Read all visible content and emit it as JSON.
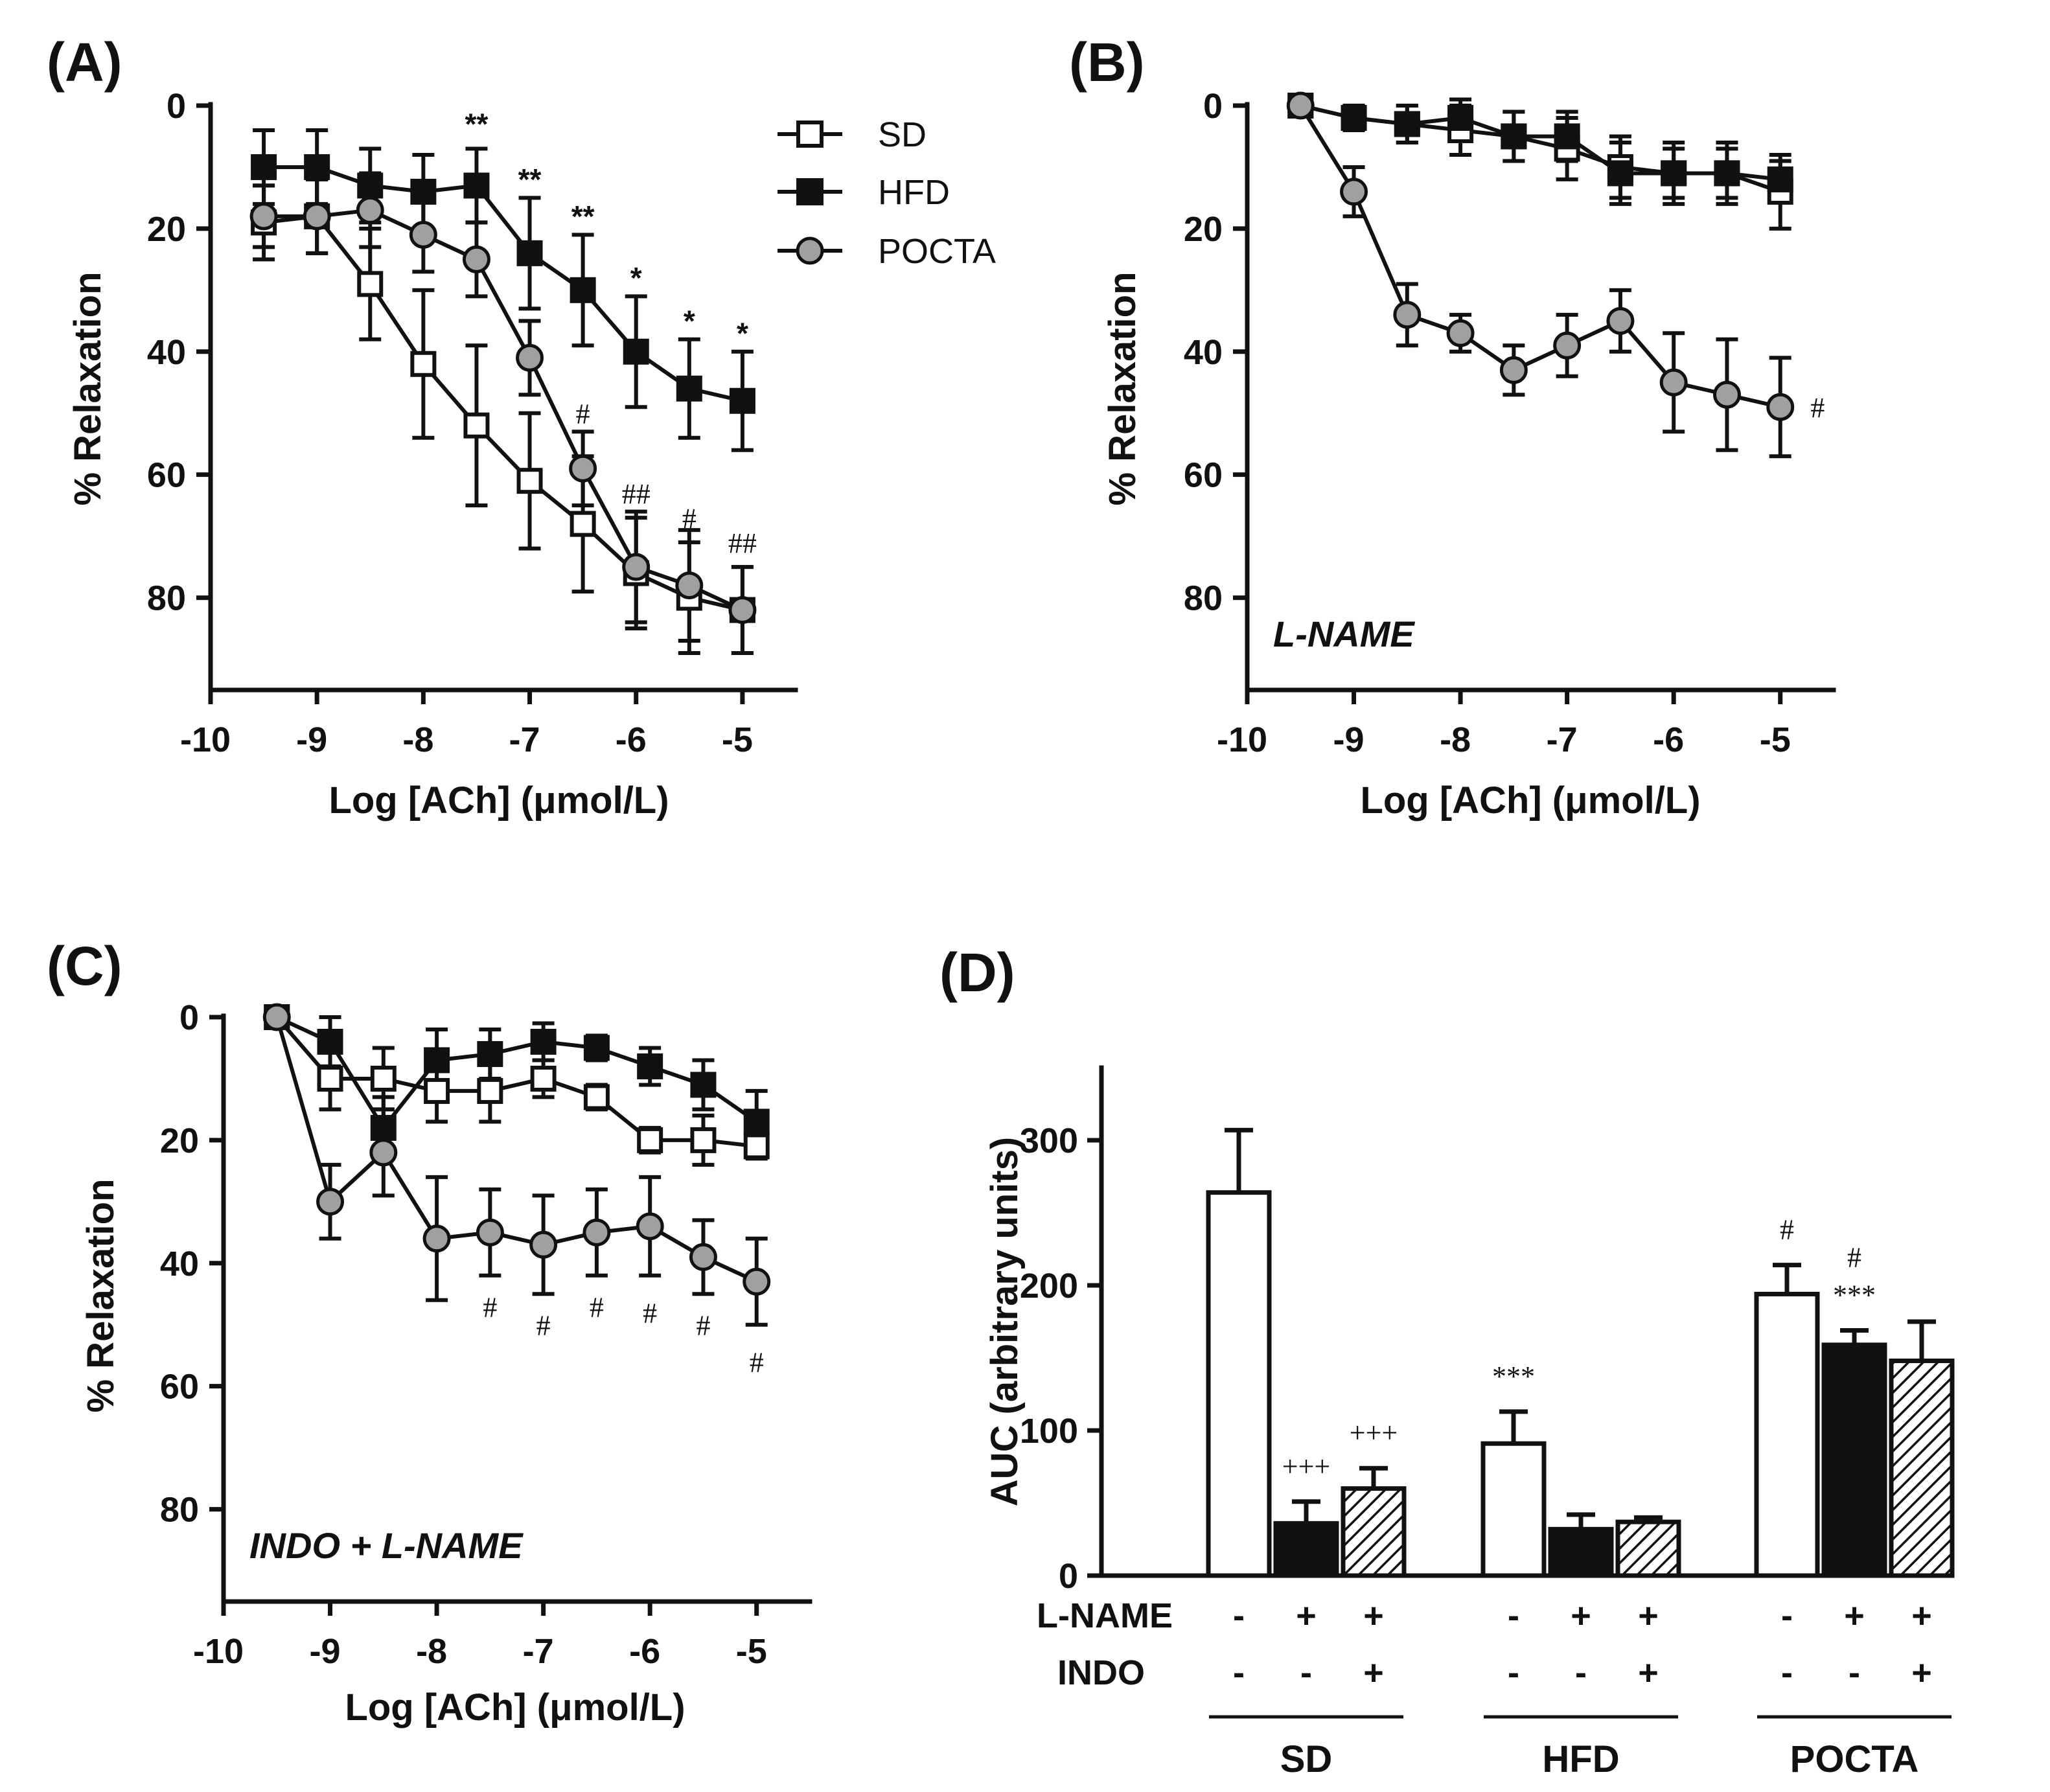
{
  "colors": {
    "SD": "#ffffff",
    "HFD": "#111111",
    "POCTA": "#a0a0a0",
    "axis": "#111111"
  },
  "chart_data": [
    {
      "panel": "(A)",
      "type": "line",
      "xlabel": "Log [ACh] (μmol/L)",
      "ylabel": "% Relaxation",
      "xlim": [
        -10,
        -4.5
      ],
      "ylim": [
        0,
        95
      ],
      "y_inverted": true,
      "xticks": [
        -10,
        -9,
        -8,
        -7,
        -6,
        -5
      ],
      "yticks": [
        0,
        20,
        40,
        60,
        80
      ],
      "x": [
        -9.5,
        -9,
        -8.5,
        -8,
        -7.5,
        -7,
        -6.5,
        -6,
        -5.5,
        -5
      ],
      "series": [
        {
          "name": "SD",
          "marker": "square-open",
          "values": [
            19,
            18,
            29,
            42,
            52,
            61,
            68,
            76,
            80,
            82
          ],
          "errors": [
            6,
            6,
            9,
            12,
            13,
            11,
            11,
            9,
            9,
            7
          ]
        },
        {
          "name": "HFD",
          "marker": "square-filled",
          "values": [
            10,
            10,
            13,
            14,
            13,
            24,
            30,
            40,
            46,
            48
          ],
          "errors": [
            6,
            6,
            6,
            6,
            6,
            9,
            9,
            9,
            8,
            8
          ]
        },
        {
          "name": "POCTA",
          "marker": "circle-gray",
          "values": [
            18,
            18,
            17,
            21,
            25,
            41,
            59,
            75,
            78,
            82
          ],
          "errors": [
            5,
            6,
            6,
            6,
            6,
            6,
            6,
            9,
            9,
            7
          ]
        }
      ],
      "legend": [
        "SD",
        "HFD",
        "POCTA"
      ],
      "annotations": [
        {
          "text": "**",
          "x": -7.5,
          "y": 3
        },
        {
          "text": "**",
          "x": -7,
          "y": 12
        },
        {
          "text": "**",
          "x": -6.5,
          "y": 18
        },
        {
          "text": "*",
          "x": -6,
          "y": 28
        },
        {
          "text": "*",
          "x": -5.5,
          "y": 35
        },
        {
          "text": "*",
          "x": -5,
          "y": 37
        },
        {
          "text": "#",
          "x": -6.5,
          "y": 50
        },
        {
          "text": "##",
          "x": -6,
          "y": 63
        },
        {
          "text": "#",
          "x": -5.5,
          "y": 67
        },
        {
          "text": "##",
          "x": -5,
          "y": 71
        }
      ]
    },
    {
      "panel": "(B)",
      "type": "line",
      "xlabel": "Log [ACh] (μmol/L)",
      "ylabel": "% Relaxation",
      "xlim": [
        -10,
        -4.5
      ],
      "ylim": [
        0,
        95
      ],
      "y_inverted": true,
      "xticks": [
        -10,
        -9,
        -8,
        -7,
        -6,
        -5
      ],
      "yticks": [
        0,
        20,
        40,
        60,
        80
      ],
      "note": "L-NAME",
      "x": [
        -9.5,
        -9,
        -8.5,
        -8,
        -7.5,
        -7,
        -6.5,
        -6,
        -5.5,
        -5
      ],
      "series": [
        {
          "name": "SD",
          "marker": "square-open",
          "values": [
            0,
            2,
            3,
            4,
            5,
            7,
            10,
            11,
            11,
            14
          ],
          "errors": [
            0,
            2,
            3,
            4,
            4,
            5,
            5,
            5,
            5,
            6
          ]
        },
        {
          "name": "HFD",
          "marker": "square-filled",
          "values": [
            0,
            2,
            3,
            2,
            5,
            5,
            11,
            11,
            11,
            12
          ],
          "errors": [
            0,
            2,
            3,
            3,
            4,
            4,
            5,
            4,
            4,
            3
          ]
        },
        {
          "name": "POCTA",
          "marker": "circle-gray",
          "values": [
            0,
            14,
            34,
            37,
            43,
            39,
            35,
            45,
            47,
            49
          ],
          "errors": [
            0,
            4,
            5,
            3,
            4,
            5,
            5,
            8,
            9,
            8
          ]
        }
      ],
      "annotations": [
        {
          "text": "#",
          "x": -4.65,
          "y": 49
        }
      ]
    },
    {
      "panel": "(C)",
      "type": "line",
      "xlabel": "Log [ACh] (μmol/L)",
      "ylabel": "% Relaxation",
      "xlim": [
        -10,
        -4.5
      ],
      "ylim": [
        0,
        95
      ],
      "y_inverted": true,
      "xticks": [
        -10,
        -9,
        -8,
        -7,
        -6,
        -5
      ],
      "yticks": [
        0,
        20,
        40,
        60,
        80
      ],
      "note": "INDO + L-NAME",
      "x": [
        -9.5,
        -9,
        -8.5,
        -8,
        -7.5,
        -7,
        -6.5,
        -6,
        -5.5,
        -5
      ],
      "series": [
        {
          "name": "SD",
          "marker": "square-open",
          "values": [
            0,
            10,
            10,
            12,
            12,
            10,
            13,
            20,
            20,
            21
          ],
          "errors": [
            0,
            5,
            5,
            5,
            5,
            3,
            2,
            2,
            4,
            2
          ]
        },
        {
          "name": "HFD",
          "marker": "square-filled",
          "values": [
            0,
            4,
            18,
            7,
            6,
            4,
            5,
            8,
            11,
            17
          ],
          "errors": [
            0,
            4,
            5,
            5,
            4,
            3,
            2,
            3,
            4,
            5
          ]
        },
        {
          "name": "POCTA",
          "marker": "circle-gray",
          "values": [
            0,
            30,
            22,
            36,
            35,
            37,
            35,
            34,
            39,
            43
          ],
          "errors": [
            0,
            6,
            7,
            10,
            7,
            8,
            7,
            8,
            6,
            7
          ]
        }
      ],
      "annotations": [
        {
          "text": "#",
          "x": -7.5,
          "y": 47
        },
        {
          "text": "#",
          "x": -7,
          "y": 50
        },
        {
          "text": "#",
          "x": -6.5,
          "y": 47
        },
        {
          "text": "#",
          "x": -6,
          "y": 48
        },
        {
          "text": "#",
          "x": -5.5,
          "y": 50
        },
        {
          "text": "#",
          "x": -5,
          "y": 56
        }
      ]
    },
    {
      "panel": "(D)",
      "type": "bar",
      "ylabel": "AUC (arbitrary units)",
      "ylim": [
        0,
        350
      ],
      "yticks": [
        0,
        100,
        200,
        300
      ],
      "groups": [
        "SD",
        "HFD",
        "POCTA"
      ],
      "row_labels": [
        "L-NAME",
        "INDO"
      ],
      "bars": [
        {
          "group": "SD",
          "fill": "white",
          "lname": "-",
          "indo": "-",
          "value": 264,
          "error": 43,
          "annot": []
        },
        {
          "group": "SD",
          "fill": "black",
          "lname": "+",
          "indo": "-",
          "value": 36,
          "error": 15,
          "annot": [
            "+++"
          ]
        },
        {
          "group": "SD",
          "fill": "hatch",
          "lname": "+",
          "indo": "+",
          "value": 60,
          "error": 14,
          "annot": [
            "+++"
          ]
        },
        {
          "group": "HFD",
          "fill": "white",
          "lname": "-",
          "indo": "-",
          "value": 91,
          "error": 22,
          "annot": [
            "***"
          ]
        },
        {
          "group": "HFD",
          "fill": "black",
          "lname": "+",
          "indo": "-",
          "value": 32,
          "error": 10,
          "annot": []
        },
        {
          "group": "HFD",
          "fill": "hatch",
          "lname": "+",
          "indo": "+",
          "value": 37,
          "error": 3,
          "annot": []
        },
        {
          "group": "POCTA",
          "fill": "white",
          "lname": "-",
          "indo": "-",
          "value": 194,
          "error": 20,
          "annot": [
            "#"
          ]
        },
        {
          "group": "POCTA",
          "fill": "black",
          "lname": "+",
          "indo": "-",
          "value": 159,
          "error": 10,
          "annot": [
            "#",
            "***"
          ]
        },
        {
          "group": "POCTA",
          "fill": "hatch",
          "lname": "+",
          "indo": "+",
          "value": 148,
          "error": 27,
          "annot": []
        }
      ]
    }
  ]
}
